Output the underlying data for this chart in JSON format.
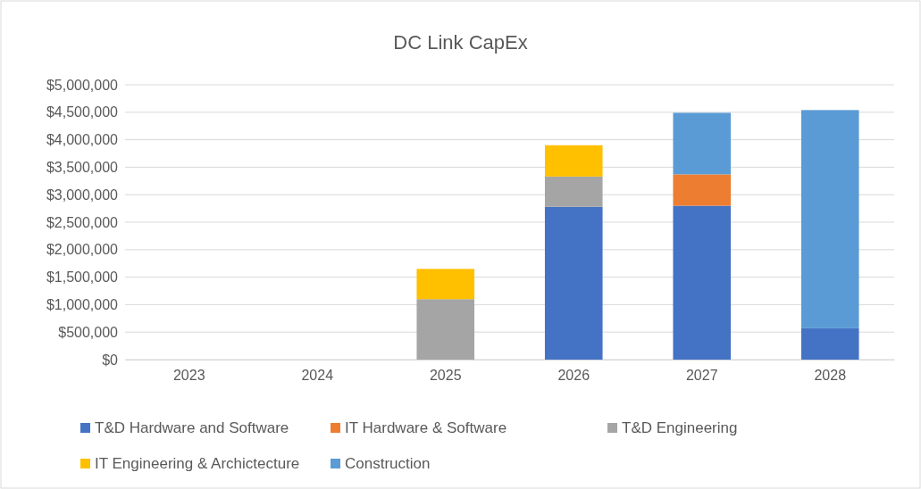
{
  "chart_data": {
    "type": "bar",
    "title": "DC Link CapEx",
    "stacked": true,
    "grid": "y",
    "legend": "bottom",
    "categories": [
      "2023",
      "2024",
      "2025",
      "2026",
      "2027",
      "2028"
    ],
    "ylim": [
      0,
      5000000
    ],
    "yticks": [
      {
        "value": 0,
        "label": "$0"
      },
      {
        "value": 500000,
        "label": "$500,000"
      },
      {
        "value": 1000000,
        "label": "$1,000,000"
      },
      {
        "value": 1500000,
        "label": "$1,500,000"
      },
      {
        "value": 2000000,
        "label": "$2,000,000"
      },
      {
        "value": 2500000,
        "label": "$2,500,000"
      },
      {
        "value": 3000000,
        "label": "$3,000,000"
      },
      {
        "value": 3500000,
        "label": "$3,500,000"
      },
      {
        "value": 4000000,
        "label": "$4,000,000"
      },
      {
        "value": 4500000,
        "label": "$4,500,000"
      },
      {
        "value": 5000000,
        "label": "$5,000,000"
      }
    ],
    "series": [
      {
        "name": "T&D Hardware and Software",
        "color": "#4472c4",
        "values": [
          0,
          0,
          0,
          2780000,
          2800000,
          570000
        ]
      },
      {
        "name": "IT Hardware & Software",
        "color": "#ed7d31",
        "values": [
          0,
          0,
          0,
          0,
          570000,
          0
        ]
      },
      {
        "name": "T&D Engineering",
        "color": "#a5a5a5",
        "values": [
          0,
          0,
          1100000,
          550000,
          0,
          0
        ]
      },
      {
        "name": "IT Engineering & Archictecture",
        "color": "#ffc000",
        "values": [
          0,
          0,
          550000,
          570000,
          0,
          0
        ]
      },
      {
        "name": "Construction",
        "color": "#5b9bd5",
        "values": [
          0,
          0,
          0,
          0,
          1120000,
          3970000
        ]
      }
    ]
  }
}
